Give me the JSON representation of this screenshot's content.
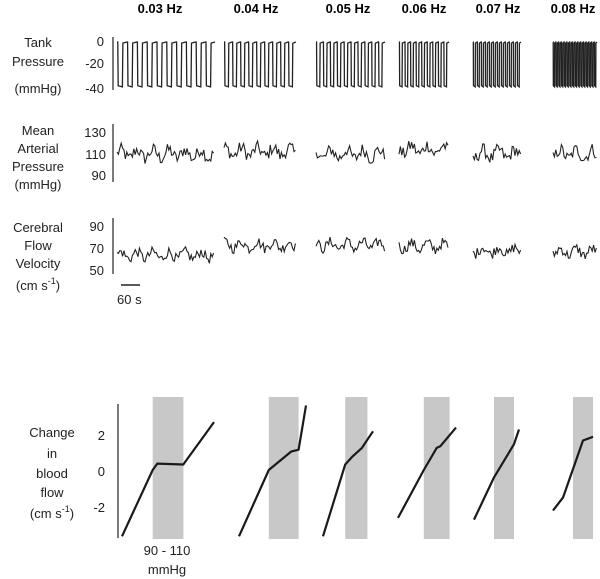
{
  "frequencies": [
    "0.03 Hz",
    "0.04 Hz",
    "0.05 Hz",
    "0.06 Hz",
    "0.07 Hz",
    "0.08 Hz"
  ],
  "traces": {
    "tank_pressure": {
      "label_lines": [
        "Tank",
        "Pressure",
        "(mmHg)"
      ],
      "ticks": [
        "0",
        "-20",
        "-40"
      ],
      "ylim": [
        -40,
        0
      ]
    },
    "mean_arterial_pressure": {
      "label_lines": [
        "Mean",
        "Arterial",
        "Pressure",
        "(mmHg)"
      ],
      "ticks": [
        "130",
        "110",
        "90"
      ],
      "ylim": [
        90,
        130
      ]
    },
    "cerebral_flow_velocity": {
      "label_lines": [
        "Cerebral",
        "Flow",
        "Velocity"
      ],
      "label_unit": "(cm s",
      "label_sup": "-1",
      "label_close": ")",
      "ticks": [
        "90",
        "70",
        "50"
      ],
      "ylim": [
        50,
        90
      ]
    },
    "scale_bar_label": "60 s"
  },
  "bottom": {
    "ylabel_lines": [
      "Change",
      "in",
      "blood",
      "flow"
    ],
    "ylabel_unit": "(cm s",
    "ylabel_sup": "-1",
    "ylabel_close": ")",
    "ticks": [
      "2",
      "0",
      "-2"
    ],
    "band_label_lines": [
      "90 - 110",
      "mmHg"
    ],
    "band_color": "#c8c8c8"
  },
  "chart_data": [
    {
      "type": "line",
      "title": "",
      "xlabel": "Mean arterial pressure (mmHg)",
      "ylabel": "Change in blood flow (cm s-1)",
      "ylim": [
        -3.8,
        3.8
      ],
      "shaded_band": [
        90,
        110
      ],
      "series": [
        {
          "name": "0.03 Hz",
          "x": [
            70,
            90,
            93,
            110,
            130
          ],
          "y": [
            -3.6,
            0.0,
            0.35,
            0.3,
            2.6
          ]
        },
        {
          "name": "0.04 Hz",
          "x": [
            70,
            90,
            105,
            110,
            115
          ],
          "y": [
            -3.6,
            0.0,
            1.0,
            1.1,
            3.5
          ]
        },
        {
          "name": "0.05 Hz",
          "x": [
            70,
            90,
            96,
            105,
            115
          ],
          "y": [
            -3.6,
            0.3,
            0.7,
            1.2,
            2.1
          ]
        },
        {
          "name": "0.06 Hz",
          "x": [
            70,
            90,
            100,
            103,
            115
          ],
          "y": [
            -2.6,
            0.0,
            1.2,
            1.3,
            2.3
          ]
        },
        {
          "name": "0.07 Hz",
          "x": [
            70,
            90,
            110,
            115
          ],
          "y": [
            -2.7,
            -0.4,
            1.4,
            2.2
          ]
        },
        {
          "name": "0.08 Hz",
          "x": [
            70,
            80,
            100,
            110
          ],
          "y": [
            -2.2,
            -1.5,
            1.6,
            1.8
          ]
        }
      ]
    }
  ]
}
